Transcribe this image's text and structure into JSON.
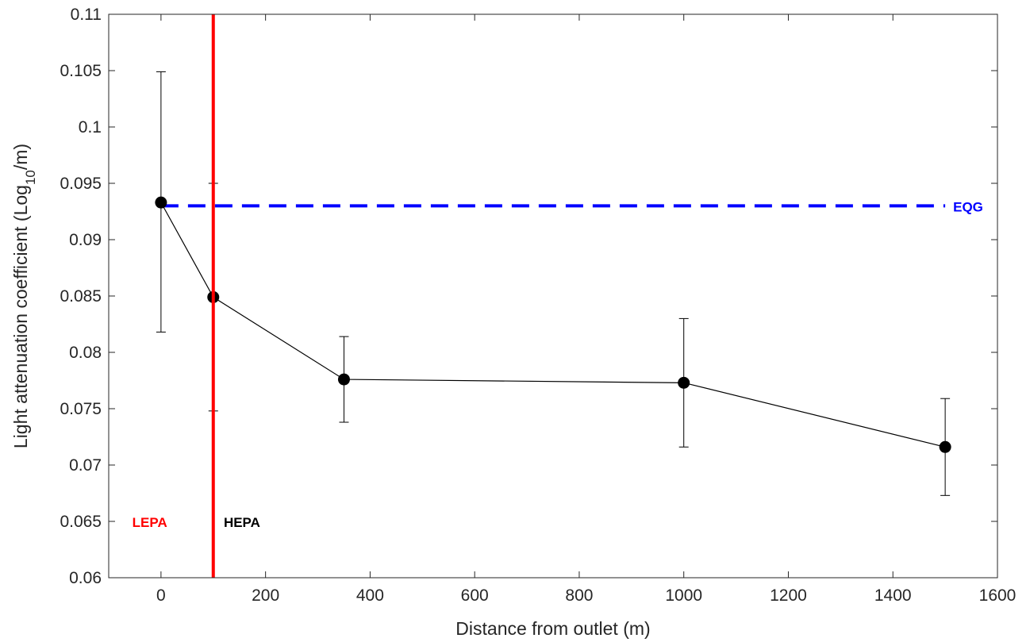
{
  "chart_data": {
    "type": "line",
    "xlabel": "Distance from outlet (m)",
    "ylabel": {
      "prefix": "Light attenuation coefficient (Log",
      "subscript": "10",
      "suffix": "/m)"
    },
    "xlim": [
      -100,
      1600
    ],
    "ylim": [
      0.06,
      0.11
    ],
    "xticks": [
      0,
      200,
      400,
      600,
      800,
      1000,
      1200,
      1400,
      1600
    ],
    "xtick_labels": [
      "0",
      "200",
      "400",
      "600",
      "800",
      "1000",
      "1200",
      "1400",
      "1600"
    ],
    "yticks": [
      0.06,
      0.065,
      0.07,
      0.075,
      0.08,
      0.085,
      0.09,
      0.095,
      0.1,
      0.105,
      0.11
    ],
    "ytick_labels": [
      "0.06",
      "0.065",
      "0.07",
      "0.075",
      "0.08",
      "0.085",
      "0.09",
      "0.095",
      "0.1",
      "0.105",
      "0.11"
    ],
    "grid": false,
    "series": [
      {
        "x": [
          0,
          100,
          350,
          1000,
          1500
        ],
        "y": [
          0.0933,
          0.0849,
          0.0776,
          0.0773,
          0.0716
        ],
        "err_low": [
          0.0818,
          0.0748,
          0.0738,
          0.0716,
          0.0673
        ],
        "err_high": [
          0.1049,
          0.095,
          0.0814,
          0.083,
          0.0759
        ],
        "color": "#000000"
      }
    ],
    "reference_lines": [
      {
        "orientation": "vertical",
        "x": 100,
        "color": "#ff0000",
        "style": "solid"
      },
      {
        "orientation": "horizontal",
        "y": 0.093,
        "x_from": 0,
        "x_to": 1500,
        "color": "#0000ff",
        "style": "dashed",
        "label": "EQG"
      }
    ],
    "annotations": [
      {
        "text": "LEPA",
        "x": -55,
        "y": 0.065,
        "color": "#ff0000"
      },
      {
        "text": "HEPA",
        "x": 120,
        "y": 0.065,
        "color": "#000000"
      }
    ]
  }
}
